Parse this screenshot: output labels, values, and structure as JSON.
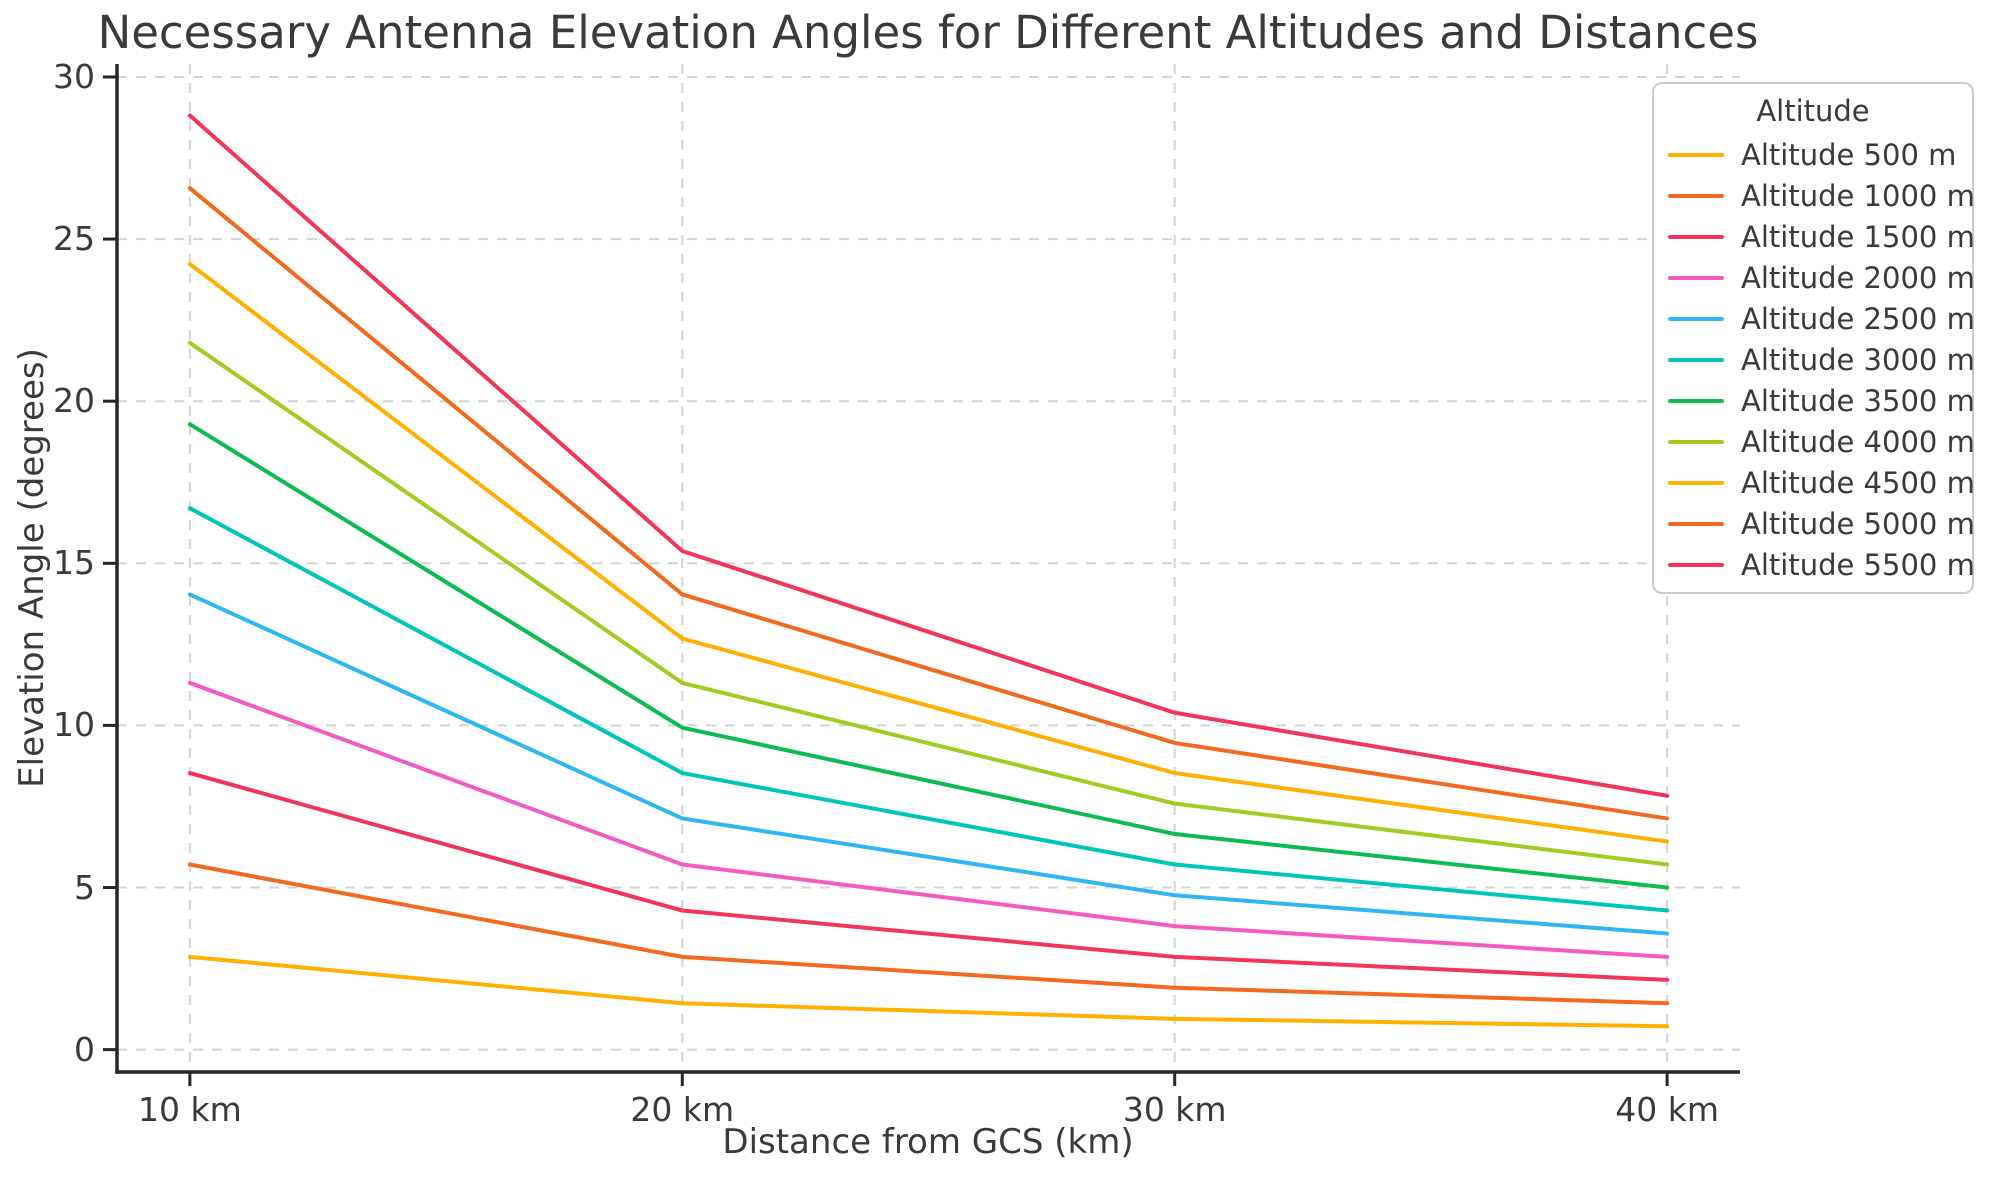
{
  "chart_data": {
    "type": "line",
    "title": "Necessary Antenna Elevation Angles for Different Altitudes and Distances",
    "xlabel": "Distance from GCS (km)",
    "ylabel": "Elevation Angle (degrees)",
    "x": [
      10,
      20,
      30,
      40
    ],
    "x_tick_labels": [
      "10 km",
      "20 km",
      "30 km",
      "40 km"
    ],
    "y_ticks": [
      0,
      5,
      10,
      15,
      20,
      25,
      30
    ],
    "y_tick_labels": [
      "0",
      "5",
      "10",
      "15",
      "20",
      "25",
      "30"
    ],
    "xlim": [
      8.52,
      41.48
    ],
    "ylim": [
      -0.69,
      30.4
    ],
    "grid": true,
    "grid_style": "dashed",
    "legend_title": "Altitude",
    "legend_position": "upper right",
    "series": [
      {
        "name": "Altitude 500 m",
        "color": "#FFB000",
        "values": [
          2.86,
          1.43,
          0.95,
          0.72
        ]
      },
      {
        "name": "Altitude 1000 m",
        "color": "#F3691E",
        "values": [
          5.71,
          2.86,
          1.91,
          1.43
        ]
      },
      {
        "name": "Altitude 1500 m",
        "color": "#F23558",
        "values": [
          8.53,
          4.29,
          2.86,
          2.15
        ]
      },
      {
        "name": "Altitude 2000 m",
        "color": "#F45BC2",
        "values": [
          11.31,
          5.71,
          3.81,
          2.86
        ]
      },
      {
        "name": "Altitude 2500 m",
        "color": "#2FB7F2",
        "values": [
          14.04,
          7.13,
          4.76,
          3.58
        ]
      },
      {
        "name": "Altitude 3000 m",
        "color": "#00C5BA",
        "values": [
          16.7,
          8.53,
          5.71,
          4.29
        ]
      },
      {
        "name": "Altitude 3500 m",
        "color": "#0CBB52",
        "values": [
          19.29,
          9.93,
          6.65,
          5.0
        ]
      },
      {
        "name": "Altitude 4000 m",
        "color": "#A2CB23",
        "values": [
          21.8,
          11.31,
          7.59,
          5.71
        ]
      },
      {
        "name": "Altitude 4500 m",
        "color": "#FFB000",
        "values": [
          24.23,
          12.68,
          8.53,
          6.42
        ]
      },
      {
        "name": "Altitude 5000 m",
        "color": "#F3691E",
        "values": [
          26.57,
          14.04,
          9.46,
          7.13
        ]
      },
      {
        "name": "Altitude 5500 m",
        "color": "#F23558",
        "values": [
          28.81,
          15.38,
          10.39,
          7.83
        ]
      }
    ]
  },
  "styles": {
    "background": "#FFFFFF",
    "grid_color": "#D4D4D4",
    "spine_color": "#262626",
    "tick_color": "#262626",
    "text_color": "#3A3A3A",
    "legend_border": "#CBCBCB"
  }
}
